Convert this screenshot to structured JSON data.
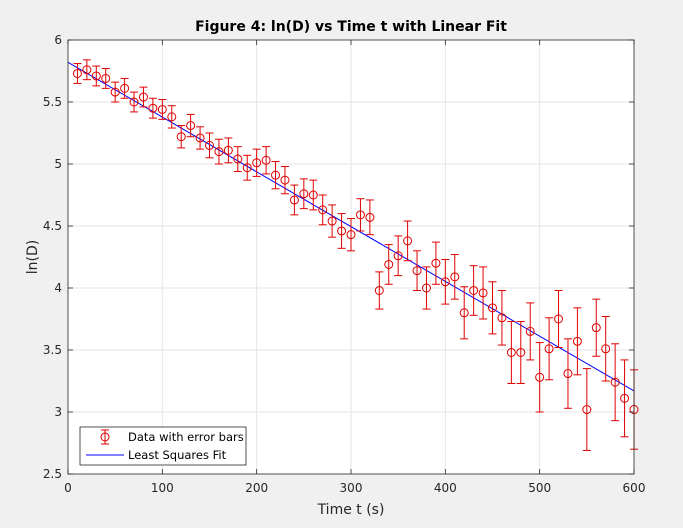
{
  "chart_data": {
    "type": "scatter",
    "title": "Figure 4: ln(D) vs Time t with Linear Fit",
    "xlabel": "Time t (s)",
    "ylabel": "ln(D)",
    "xlim": [
      0,
      600
    ],
    "ylim": [
      2.5,
      6
    ],
    "xticks": [
      0,
      100,
      200,
      300,
      400,
      500,
      600
    ],
    "yticks": [
      2.5,
      3,
      3.5,
      4,
      4.5,
      5,
      5.5,
      6
    ],
    "xtick_labels": [
      "0",
      "100",
      "200",
      "300",
      "400",
      "500",
      "600"
    ],
    "ytick_labels": [
      "2.5",
      "3",
      "3.5",
      "4",
      "4.5",
      "5",
      "5.5",
      "6"
    ],
    "grid": true,
    "legend_position": "bottom-left",
    "series": [
      {
        "name": "Data with error bars",
        "style": "markers-with-errorbars",
        "color": "#e00000",
        "x": [
          10,
          20,
          30,
          40,
          50,
          60,
          70,
          80,
          90,
          100,
          110,
          120,
          130,
          140,
          150,
          160,
          170,
          180,
          190,
          200,
          210,
          220,
          230,
          240,
          250,
          260,
          270,
          280,
          290,
          300,
          310,
          320,
          330,
          340,
          350,
          360,
          370,
          380,
          390,
          400,
          410,
          420,
          430,
          440,
          450,
          460,
          470,
          480,
          490,
          500,
          510,
          520,
          530,
          540,
          550,
          560,
          570,
          580,
          590,
          600
        ],
        "y": [
          5.73,
          5.76,
          5.71,
          5.69,
          5.58,
          5.61,
          5.5,
          5.54,
          5.45,
          5.44,
          5.38,
          5.22,
          5.31,
          5.21,
          5.15,
          5.1,
          5.11,
          5.04,
          4.97,
          5.01,
          5.03,
          4.91,
          4.87,
          4.71,
          4.76,
          4.75,
          4.63,
          4.54,
          4.46,
          4.43,
          4.59,
          4.57,
          3.98,
          4.19,
          4.26,
          4.38,
          4.14,
          4.0,
          4.2,
          4.05,
          4.09,
          3.8,
          3.98,
          3.96,
          3.84,
          3.76,
          3.48,
          3.48,
          3.65,
          3.28,
          3.51,
          3.75,
          3.31,
          3.57,
          3.02,
          3.68,
          3.51,
          3.24,
          3.11,
          3.02
        ],
        "error": [
          0.08,
          0.08,
          0.08,
          0.08,
          0.08,
          0.08,
          0.08,
          0.08,
          0.08,
          0.08,
          0.09,
          0.09,
          0.09,
          0.09,
          0.1,
          0.1,
          0.1,
          0.1,
          0.1,
          0.11,
          0.11,
          0.11,
          0.11,
          0.12,
          0.12,
          0.12,
          0.12,
          0.13,
          0.14,
          0.13,
          0.13,
          0.14,
          0.15,
          0.16,
          0.16,
          0.16,
          0.16,
          0.17,
          0.17,
          0.18,
          0.18,
          0.21,
          0.2,
          0.21,
          0.21,
          0.22,
          0.25,
          0.25,
          0.23,
          0.28,
          0.25,
          0.23,
          0.28,
          0.27,
          0.33,
          0.23,
          0.26,
          0.31,
          0.31,
          0.32
        ]
      },
      {
        "name": "Least Squares Fit",
        "style": "line",
        "color": "#0000ff",
        "x": [
          0,
          600
        ],
        "y": [
          5.82,
          3.17
        ]
      }
    ]
  }
}
